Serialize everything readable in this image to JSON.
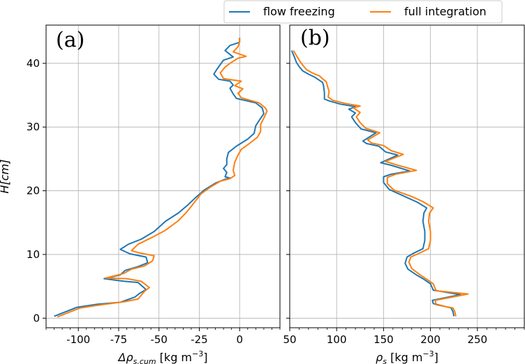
{
  "chart_data": [
    {
      "type": "line",
      "panel_label": "(a)",
      "xlabel_prefix": "Δρ",
      "xlabel_sub": "s,cum",
      "xlabel_unit": " [kg m",
      "xlabel_sup": "−3",
      "xlabel_close": "]",
      "ylabel": "H[cm]",
      "xlim": [
        -120,
        25
      ],
      "ylim": [
        -1.5,
        46
      ],
      "xticks": [
        -100,
        -75,
        -50,
        -25,
        0
      ],
      "xtick_labels": [
        "-100",
        "-75",
        "-50",
        "-25",
        "0"
      ],
      "yticks": [
        0,
        10,
        20,
        30,
        40
      ],
      "ytick_labels": [
        "0",
        "10",
        "20",
        "30",
        "40"
      ],
      "grid": true,
      "series": [
        {
          "name": "flow freezing",
          "color": "#1f77b4",
          "points": [
            [
              -115,
              0.3
            ],
            [
              -108,
              1.0
            ],
            [
              -101,
              1.7
            ],
            [
              -88,
              2.2
            ],
            [
              -74,
              2.5
            ],
            [
              -65,
              3.3
            ],
            [
              -62,
              3.9
            ],
            [
              -58,
              4.5
            ],
            [
              -63,
              5.6
            ],
            [
              -72,
              5.8
            ],
            [
              -84,
              6.2
            ],
            [
              -74,
              6.8
            ],
            [
              -71,
              7.5
            ],
            [
              -63,
              8.1
            ],
            [
              -57,
              8.7
            ],
            [
              -58,
              9.6
            ],
            [
              -68,
              10.1
            ],
            [
              -74,
              10.8
            ],
            [
              -69,
              11.6
            ],
            [
              -61,
              12.4
            ],
            [
              -53,
              13.6
            ],
            [
              -46,
              15.2
            ],
            [
              -38,
              16.5
            ],
            [
              -32,
              17.8
            ],
            [
              -27,
              19.0
            ],
            [
              -22,
              20.1
            ],
            [
              -15,
              21.2
            ],
            [
              -9,
              21.8
            ],
            [
              -6,
              22.0
            ],
            [
              -9,
              22.2
            ],
            [
              -8,
              22.9
            ],
            [
              -10,
              23.5
            ],
            [
              -8,
              24.1
            ],
            [
              -8,
              25.0
            ],
            [
              -7,
              26.0
            ],
            [
              -2,
              27.0
            ],
            [
              5,
              28.1
            ],
            [
              9,
              29.0
            ],
            [
              10,
              30.2
            ],
            [
              12,
              31.0
            ],
            [
              15,
              32.1
            ],
            [
              14,
              33.0
            ],
            [
              10,
              33.8
            ],
            [
              -2,
              34.5
            ],
            [
              -4,
              35.2
            ],
            [
              -6,
              36.1
            ],
            [
              -4,
              36.6
            ],
            [
              -6,
              37.2
            ],
            [
              -13,
              37.5
            ],
            [
              -16,
              38.3
            ],
            [
              -14,
              39.1
            ],
            [
              -10,
              40.5
            ],
            [
              -4,
              41.0
            ],
            [
              -9,
              42.0
            ],
            [
              -6,
              42.8
            ],
            [
              0,
              43.3
            ],
            [
              0,
              44.0
            ]
          ]
        },
        {
          "name": "full integration",
          "color": "#ff7f0e",
          "points": [
            [
              -113,
              0.2
            ],
            [
              -106,
              0.9
            ],
            [
              -99,
              1.6
            ],
            [
              -86,
              2.1
            ],
            [
              -71,
              2.6
            ],
            [
              -63,
              3.0
            ],
            [
              -59,
              4.2
            ],
            [
              -56,
              4.8
            ],
            [
              -61,
              5.8
            ],
            [
              -70,
              6.2
            ],
            [
              -83,
              6.3
            ],
            [
              -72,
              7.0
            ],
            [
              -67,
              7.7
            ],
            [
              -59,
              8.2
            ],
            [
              -54,
              9.0
            ],
            [
              -53,
              9.8
            ],
            [
              -63,
              10.3
            ],
            [
              -67,
              10.6
            ],
            [
              -63,
              11.6
            ],
            [
              -55,
              12.6
            ],
            [
              -46,
              13.8
            ],
            [
              -38,
              15.3
            ],
            [
              -33,
              16.6
            ],
            [
              -28,
              18.2
            ],
            [
              -24,
              19.5
            ],
            [
              -18,
              20.6
            ],
            [
              -12,
              21.5
            ],
            [
              -6,
              21.9
            ],
            [
              -3,
              22.4
            ],
            [
              -4,
              23.2
            ],
            [
              -3,
              24.5
            ],
            [
              -1,
              25.6
            ],
            [
              1,
              26.5
            ],
            [
              6,
              27.4
            ],
            [
              11,
              28.4
            ],
            [
              13,
              29.3
            ],
            [
              13,
              30.4
            ],
            [
              15,
              31.4
            ],
            [
              17,
              32.5
            ],
            [
              16,
              33.0
            ],
            [
              12,
              33.8
            ],
            [
              1,
              34.6
            ],
            [
              -1,
              35.3
            ],
            [
              2,
              36.0
            ],
            [
              -3,
              36.5
            ],
            [
              1,
              37.2
            ],
            [
              -10,
              37.6
            ],
            [
              -12,
              38.5
            ],
            [
              -9,
              39.4
            ],
            [
              -6,
              40.0
            ],
            [
              -1,
              40.8
            ],
            [
              4,
              41.1
            ],
            [
              -4,
              41.8
            ],
            [
              -1,
              42.6
            ],
            [
              0,
              43.4
            ],
            [
              0,
              44.0
            ]
          ]
        }
      ]
    },
    {
      "type": "line",
      "panel_label": "(b)",
      "xlabel_prefix": "ρ",
      "xlabel_sub": "s",
      "xlabel_unit": " [kg m",
      "xlabel_sup": "−3",
      "xlabel_close": "]",
      "xlim": [
        50,
        300
      ],
      "ylim": [
        -1.5,
        46
      ],
      "xticks": [
        50,
        100,
        150,
        200,
        250
      ],
      "xtick_labels": [
        "50",
        "100",
        "150",
        "200",
        "250"
      ],
      "yticks": [
        0,
        10,
        20,
        30,
        40
      ],
      "grid": true,
      "series": [
        {
          "name": "flow freezing",
          "color": "#1f77b4",
          "points": [
            [
              225,
              0.3
            ],
            [
              224,
              1.0
            ],
            [
              222,
              1.6
            ],
            [
              203,
              2.3
            ],
            [
              202,
              2.8
            ],
            [
              232,
              3.7
            ],
            [
              203,
              4.4
            ],
            [
              200,
              5.4
            ],
            [
              192,
              6.2
            ],
            [
              185,
              6.8
            ],
            [
              176,
              7.7
            ],
            [
              173,
              8.6
            ],
            [
              175,
              9.6
            ],
            [
              182,
              10.2
            ],
            [
              192,
              10.9
            ],
            [
              194,
              12.2
            ],
            [
              194,
              13.6
            ],
            [
              192,
              15.2
            ],
            [
              193,
              16.5
            ],
            [
              196,
              17.3
            ],
            [
              186,
              18.2
            ],
            [
              174,
              19.0
            ],
            [
              156,
              20.2
            ],
            [
              150,
              21.3
            ],
            [
              150,
              22.2
            ],
            [
              158,
              22.6
            ],
            [
              178,
              23.1
            ],
            [
              158,
              24.0
            ],
            [
              147,
              24.4
            ],
            [
              165,
              25.6
            ],
            [
              152,
              26.1
            ],
            [
              145,
              27.0
            ],
            [
              132,
              27.4
            ],
            [
              128,
              27.8
            ],
            [
              142,
              29.1
            ],
            [
              126,
              29.7
            ],
            [
              120,
              30.7
            ],
            [
              116,
              31.6
            ],
            [
              120,
              32.2
            ],
            [
              113,
              32.8
            ],
            [
              120,
              33.2
            ],
            [
              104,
              33.6
            ],
            [
              92,
              34.1
            ],
            [
              87,
              34.4
            ],
            [
              87,
              35.4
            ],
            [
              86,
              36.5
            ],
            [
              85,
              37.0
            ],
            [
              80,
              37.5
            ],
            [
              77,
              37.8
            ],
            [
              70,
              38.3
            ],
            [
              64,
              38.8
            ],
            [
              60,
              39.5
            ],
            [
              57,
              40.2
            ],
            [
              55,
              41.0
            ],
            [
              52,
              42.0
            ]
          ]
        },
        {
          "name": "full integration",
          "color": "#ff7f0e",
          "points": [
            [
              227,
              0.3
            ],
            [
              226,
              1.0
            ],
            [
              224,
              1.6
            ],
            [
              206,
              2.1
            ],
            [
              205,
              2.8
            ],
            [
              240,
              3.8
            ],
            [
              206,
              4.3
            ],
            [
              203,
              5.4
            ],
            [
              195,
              6.2
            ],
            [
              189,
              6.8
            ],
            [
              180,
              7.8
            ],
            [
              177,
              8.8
            ],
            [
              179,
              9.6
            ],
            [
              188,
              10.2
            ],
            [
              198,
              10.9
            ],
            [
              200,
              12.2
            ],
            [
              200,
              13.6
            ],
            [
              198,
              15.2
            ],
            [
              199,
              16.5
            ],
            [
              203,
              17.3
            ],
            [
              192,
              18.3
            ],
            [
              180,
              19.1
            ],
            [
              161,
              20.1
            ],
            [
              154,
              21.1
            ],
            [
              154,
              22.1
            ],
            [
              163,
              22.6
            ],
            [
              185,
              23.2
            ],
            [
              163,
              24.1
            ],
            [
              152,
              24.6
            ],
            [
              171,
              25.7
            ],
            [
              158,
              26.3
            ],
            [
              150,
              27.1
            ],
            [
              137,
              27.5
            ],
            [
              133,
              28.0
            ],
            [
              146,
              29.1
            ],
            [
              131,
              29.8
            ],
            [
              125,
              30.7
            ],
            [
              121,
              31.6
            ],
            [
              125,
              32.3
            ],
            [
              118,
              33.0
            ],
            [
              125,
              33.3
            ],
            [
              109,
              33.7
            ],
            [
              96,
              34.2
            ],
            [
              91,
              34.7
            ],
            [
              92,
              35.6
            ],
            [
              90,
              36.5
            ],
            [
              89,
              37.1
            ],
            [
              84,
              37.7
            ],
            [
              82,
              38.0
            ],
            [
              74,
              38.5
            ],
            [
              68,
              39.0
            ],
            [
              64,
              39.7
            ],
            [
              61,
              40.3
            ],
            [
              58,
              41.0
            ],
            [
              54,
              42.0
            ]
          ]
        }
      ]
    }
  ],
  "legend": {
    "placement": "top-right",
    "entries": [
      {
        "label": "flow freezing",
        "color": "#1f77b4"
      },
      {
        "label": "full integration",
        "color": "#ff7f0e"
      }
    ]
  }
}
